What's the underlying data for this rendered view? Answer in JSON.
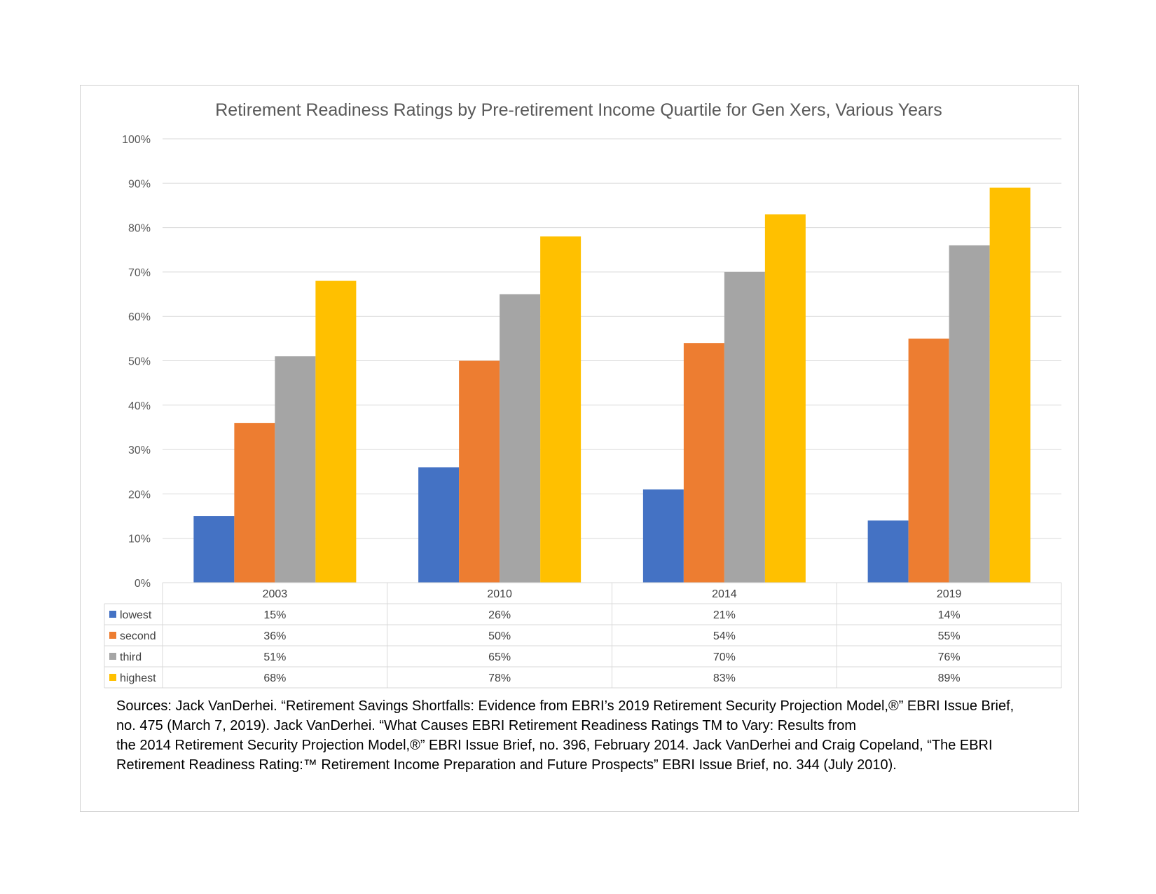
{
  "chart_data": {
    "type": "bar",
    "title": "Retirement Readiness Ratings by Pre-retirement Income Quartile for Gen Xers, Various Years",
    "categories": [
      "2003",
      "2010",
      "2014",
      "2019"
    ],
    "series": [
      {
        "name": "lowest",
        "color": "#4472C4",
        "values": [
          15,
          26,
          21,
          14
        ],
        "labels": [
          "15%",
          "26%",
          "21%",
          "14%"
        ]
      },
      {
        "name": "second",
        "color": "#ED7D31",
        "values": [
          36,
          50,
          54,
          55
        ],
        "labels": [
          "36%",
          "50%",
          "54%",
          "55%"
        ]
      },
      {
        "name": "third",
        "color": "#A5A5A5",
        "values": [
          51,
          65,
          70,
          76
        ],
        "labels": [
          "51%",
          "65%",
          "70%",
          "76%"
        ]
      },
      {
        "name": "highest",
        "color": "#FFC000",
        "values": [
          68,
          78,
          83,
          89
        ],
        "labels": [
          "68%",
          "78%",
          "83%",
          "89%"
        ]
      }
    ],
    "ylim": [
      0,
      100
    ],
    "yticks": [
      "0%",
      "10%",
      "20%",
      "30%",
      "40%",
      "50%",
      "60%",
      "70%",
      "80%",
      "90%",
      "100%"
    ],
    "grid": true,
    "legend": "data table below chart"
  },
  "sources": [
    "Sources: Jack VanDerhei. “Retirement Savings Shortfalls: Evidence from EBRI’s 2019 Retirement Security Projection Model,®” EBRI Issue Brief,",
    "no. 475 (March 7, 2019). Jack VanDerhei. “What Causes EBRI Retirement Readiness Ratings TM to Vary: Results from",
    "the 2014 Retirement Security Projection Model,®” EBRI Issue Brief, no. 396, February 2014. Jack VanDerhei and Craig Copeland, “The EBRI",
    "Retirement Readiness Rating:™ Retirement Income Preparation and Future Prospects” EBRI Issue Brief, no. 344 (July 2010)."
  ]
}
